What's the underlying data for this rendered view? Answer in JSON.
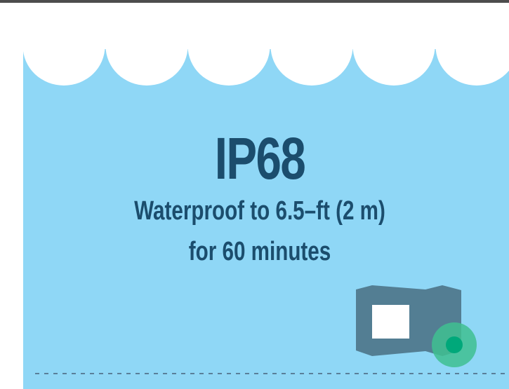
{
  "rating": "IP68",
  "description": {
    "line1": "Waterproof to 6.5–ft (2 m)",
    "line2": "for 60 minutes"
  }
}
